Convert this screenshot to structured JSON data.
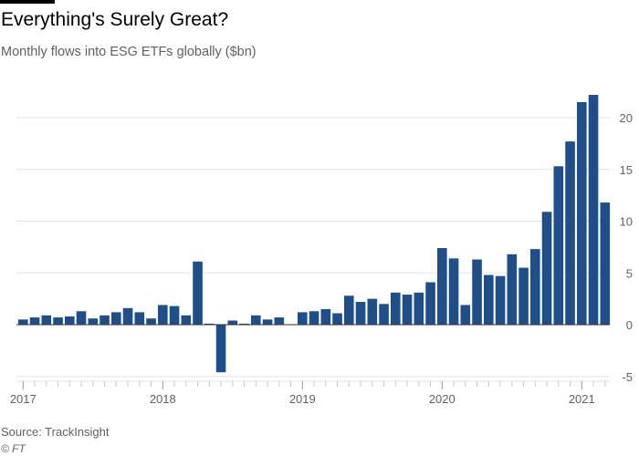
{
  "header": {
    "title": "Everything's Surely Great?",
    "subtitle": "Monthly flows into ESG ETFs globally ($bn)"
  },
  "footer": {
    "source": "Source: TrackInsight",
    "credit": "© FT"
  },
  "colors": {
    "bar": "#1f4e89",
    "grid": "#e6e3e1",
    "zero_line": "#33302e",
    "axis_text": "#66605c"
  },
  "chart_data": {
    "type": "bar",
    "title": "Everything's Surely Great?",
    "ylabel": "Monthly flows into ESG ETFs globally ($bn)",
    "xlabel": "",
    "ylim": [
      -5,
      22.5
    ],
    "yticks": [
      -5,
      0,
      5,
      10,
      15,
      20
    ],
    "grid": true,
    "x_tick_labels": [
      "2017",
      "2018",
      "2019",
      "2020",
      "2021"
    ],
    "categories": [
      "2017-01",
      "2017-02",
      "2017-03",
      "2017-04",
      "2017-05",
      "2017-06",
      "2017-07",
      "2017-08",
      "2017-09",
      "2017-10",
      "2017-11",
      "2017-12",
      "2018-01",
      "2018-02",
      "2018-03",
      "2018-04",
      "2018-05",
      "2018-06",
      "2018-07",
      "2018-08",
      "2018-09",
      "2018-10",
      "2018-11",
      "2018-12",
      "2019-01",
      "2019-02",
      "2019-03",
      "2019-04",
      "2019-05",
      "2019-06",
      "2019-07",
      "2019-08",
      "2019-09",
      "2019-10",
      "2019-11",
      "2019-12",
      "2020-01",
      "2020-02",
      "2020-03",
      "2020-04",
      "2020-05",
      "2020-06",
      "2020-07",
      "2020-08",
      "2020-09",
      "2020-10",
      "2020-11",
      "2020-12",
      "2021-01",
      "2021-02",
      "2021-03"
    ],
    "values": [
      0.5,
      0.7,
      0.9,
      0.7,
      0.8,
      1.3,
      0.6,
      0.9,
      1.2,
      1.6,
      1.2,
      0.6,
      1.9,
      1.8,
      0.9,
      6.1,
      0.1,
      -4.6,
      0.4,
      0.1,
      0.9,
      0.5,
      0.7,
      0.0,
      1.2,
      1.3,
      1.5,
      1.1,
      2.8,
      2.2,
      2.5,
      2.0,
      3.1,
      2.9,
      3.1,
      4.1,
      7.4,
      6.4,
      1.9,
      6.3,
      4.8,
      4.7,
      6.8,
      5.5,
      7.3,
      10.9,
      15.3,
      17.7,
      21.5,
      22.2,
      11.8
    ]
  }
}
